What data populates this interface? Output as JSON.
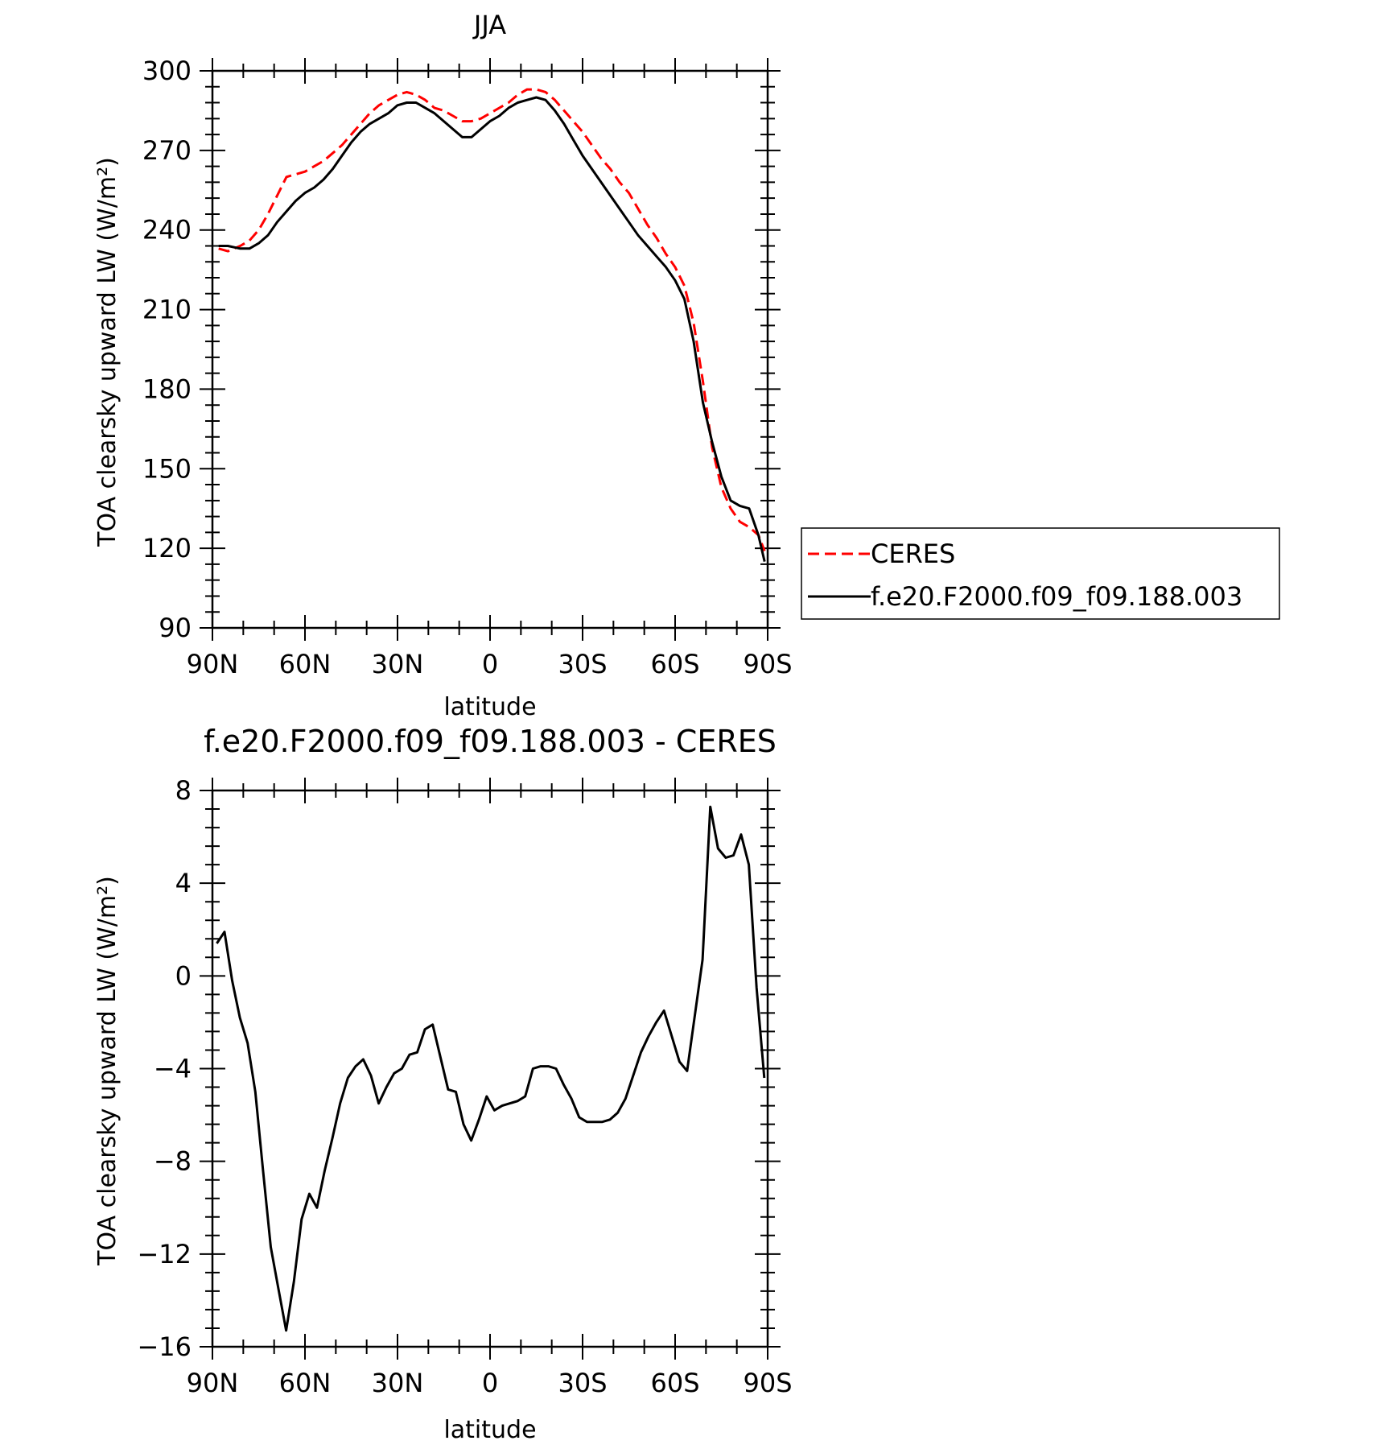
{
  "chart_data": [
    {
      "type": "line",
      "title": "JJA",
      "xlabel": "latitude",
      "ylabel": "TOA clearsky upward LW (W/m²)",
      "xlim": [
        -90,
        90
      ],
      "ylim": [
        90,
        300
      ],
      "x_ticks": [
        {
          "value": -90,
          "label": "90N"
        },
        {
          "value": -60,
          "label": "60N"
        },
        {
          "value": -30,
          "label": "30N"
        },
        {
          "value": 0,
          "label": "0"
        },
        {
          "value": 30,
          "label": "30S"
        },
        {
          "value": 60,
          "label": "60S"
        },
        {
          "value": 90,
          "label": "90S"
        }
      ],
      "y_ticks": [
        90,
        120,
        150,
        180,
        210,
        240,
        270,
        300
      ],
      "legend": {
        "placement": "right"
      },
      "series": [
        {
          "name": "CERES",
          "color": "#ff0000",
          "style": "dashed",
          "x": [
            -88,
            -85,
            -81,
            -78,
            -75,
            -72,
            -69,
            -66,
            -63,
            -60,
            -57,
            -54,
            -51,
            -48,
            -45,
            -42,
            -39,
            -36,
            -33,
            -30,
            -27,
            -24,
            -21,
            -18,
            -15,
            -12,
            -9,
            -6,
            -3,
            0,
            3,
            6,
            9,
            12,
            15,
            18,
            21,
            24,
            27,
            30,
            33,
            36,
            39,
            42,
            45,
            48,
            51,
            54,
            57,
            60,
            63,
            66,
            69,
            72,
            75,
            78,
            81,
            84,
            87,
            89
          ],
          "y": [
            233,
            232,
            234,
            236,
            240,
            246,
            253,
            260,
            261,
            262,
            264,
            266,
            269,
            272,
            276,
            280,
            284,
            287,
            289,
            291,
            292,
            291,
            289,
            286,
            285,
            283,
            281,
            281,
            282,
            284,
            286,
            288,
            291,
            293,
            293,
            292,
            289,
            285,
            281,
            277,
            272,
            267,
            263,
            258,
            254,
            248,
            242,
            237,
            231,
            226,
            219,
            205,
            183,
            158,
            143,
            135,
            130,
            128,
            125,
            119
          ]
        },
        {
          "name": "f.e20.F2000.f09_f09.188.003",
          "color": "#000000",
          "style": "solid",
          "x": [
            -88,
            -85,
            -81,
            -78,
            -75,
            -72,
            -69,
            -66,
            -63,
            -60,
            -57,
            -54,
            -51,
            -48,
            -45,
            -42,
            -39,
            -36,
            -33,
            -30,
            -27,
            -24,
            -21,
            -18,
            -15,
            -12,
            -9,
            -6,
            -3,
            0,
            3,
            6,
            9,
            12,
            15,
            18,
            21,
            24,
            27,
            30,
            33,
            36,
            39,
            42,
            45,
            48,
            51,
            54,
            57,
            60,
            63,
            66,
            69,
            72,
            75,
            78,
            81,
            84,
            87,
            89
          ],
          "y": [
            234,
            234,
            233,
            233,
            235,
            238,
            243,
            247,
            251,
            254,
            256,
            259,
            263,
            268,
            273,
            277,
            280,
            282,
            284,
            287,
            288,
            288,
            286,
            284,
            281,
            278,
            275,
            275,
            278,
            281,
            283,
            286,
            288,
            289,
            290,
            289,
            285,
            280,
            274,
            268,
            263,
            258,
            253,
            248,
            243,
            238,
            234,
            230,
            226,
            221,
            214,
            198,
            175,
            160,
            147,
            138,
            136,
            135,
            125,
            115
          ]
        }
      ]
    },
    {
      "type": "line",
      "title": "f.e20.F2000.f09_f09.188.003 - CERES",
      "xlabel": "latitude",
      "ylabel": "TOA clearsky upward LW (W/m²)",
      "xlim": [
        -90,
        90
      ],
      "ylim": [
        -16,
        8
      ],
      "x_ticks": [
        {
          "value": -90,
          "label": "90N"
        },
        {
          "value": -60,
          "label": "60N"
        },
        {
          "value": -30,
          "label": "30N"
        },
        {
          "value": 0,
          "label": "0"
        },
        {
          "value": 30,
          "label": "30S"
        },
        {
          "value": 60,
          "label": "60S"
        },
        {
          "value": 90,
          "label": "90S"
        }
      ],
      "y_ticks": [
        {
          "value": -16,
          "label": "−16"
        },
        {
          "value": -12,
          "label": "−12"
        },
        {
          "value": -8,
          "label": "−8"
        },
        {
          "value": -4,
          "label": "−4"
        },
        {
          "value": 0,
          "label": "0"
        },
        {
          "value": 4,
          "label": "4"
        },
        {
          "value": 8,
          "label": "8"
        }
      ],
      "series": [
        {
          "color": "#000000",
          "style": "solid",
          "x": [
            -88.6,
            -86.1,
            -83.6,
            -81.1,
            -78.6,
            -76.1,
            -73.6,
            -71.1,
            -68.6,
            -66.1,
            -63.6,
            -61.1,
            -58.6,
            -56.1,
            -53.6,
            -51.1,
            -48.6,
            -46.1,
            -43.6,
            -41.1,
            -38.6,
            -36.1,
            -33.6,
            -31.1,
            -28.6,
            -26.1,
            -23.6,
            -21.1,
            -18.6,
            -16.1,
            -13.6,
            -11.1,
            -8.6,
            -6.1,
            -3.6,
            -1.1,
            1.4,
            3.9,
            6.4,
            8.9,
            11.4,
            13.9,
            16.4,
            18.9,
            21.4,
            23.9,
            26.4,
            28.9,
            31.4,
            33.9,
            36.4,
            38.9,
            41.4,
            43.9,
            46.4,
            48.9,
            51.4,
            53.9,
            56.4,
            58.9,
            61.4,
            63.9,
            66.4,
            68.9,
            71.4,
            73.9,
            76.4,
            78.9,
            81.4,
            83.9,
            86.4,
            88.9
          ],
          "y": [
            1.4,
            1.9,
            -0.2,
            -1.8,
            -2.9,
            -5.0,
            -8.4,
            -11.7,
            -13.5,
            -15.3,
            -13.2,
            -10.5,
            -9.4,
            -10.0,
            -8.4,
            -7.0,
            -5.5,
            -4.4,
            -3.9,
            -3.6,
            -4.3,
            -5.5,
            -4.8,
            -4.2,
            -4.0,
            -3.4,
            -3.3,
            -2.3,
            -2.1,
            -3.5,
            -4.9,
            -5.0,
            -6.4,
            -7.1,
            -6.2,
            -5.2,
            -5.8,
            -5.6,
            -5.5,
            -5.4,
            -5.2,
            -4.0,
            -3.9,
            -3.9,
            -4.0,
            -4.7,
            -5.3,
            -6.1,
            -6.3,
            -6.3,
            -6.3,
            -6.2,
            -5.9,
            -5.3,
            -4.3,
            -3.3,
            -2.6,
            -2.0,
            -1.5,
            -2.6,
            -3.7,
            -4.1,
            -1.7,
            0.7,
            7.3,
            5.5,
            5.1,
            5.2,
            6.1,
            4.8,
            -0.5,
            -4.4
          ]
        }
      ]
    }
  ]
}
